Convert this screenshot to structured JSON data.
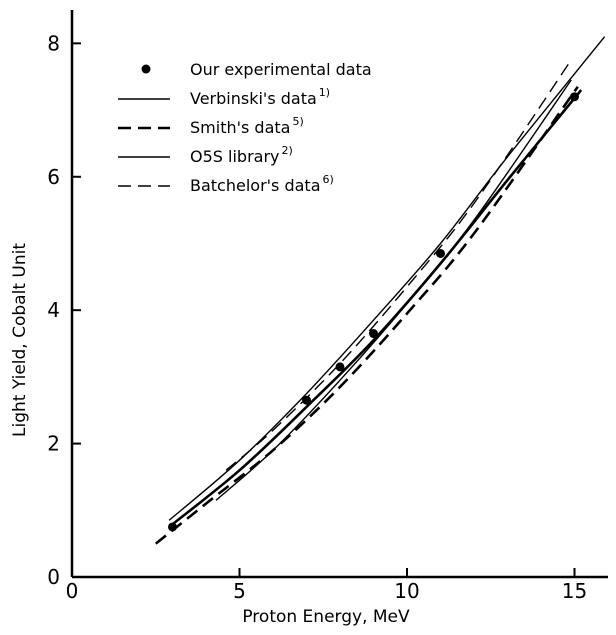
{
  "chart_data": {
    "type": "line",
    "title": "",
    "xlabel": "Proton Energy, MeV",
    "ylabel": "Light Yield, Cobalt Unit",
    "xlim": [
      0,
      16
    ],
    "ylim": [
      0,
      8.5
    ],
    "x_ticks": [
      "0",
      "5",
      "10",
      "15"
    ],
    "y_ticks": [
      "0",
      "2",
      "4",
      "6",
      "8"
    ],
    "grid": false,
    "legend_position": "top-left",
    "series": [
      {
        "name": "Our experimental data",
        "marker": "dot",
        "style": "solid",
        "width": "thick",
        "x": [
          3.0,
          7.0,
          8.0,
          9.0,
          11.0,
          15.0
        ],
        "y": [
          0.75,
          2.65,
          3.15,
          3.65,
          4.85,
          7.2
        ],
        "curve": [
          [
            2.9,
            0.75
          ],
          [
            5,
            1.6
          ],
          [
            7,
            2.55
          ],
          [
            9,
            3.55
          ],
          [
            11,
            4.7
          ],
          [
            13,
            5.95
          ],
          [
            15.2,
            7.3
          ]
        ]
      },
      {
        "name": "Verbinski's data",
        "sup": "1)",
        "style": "solid",
        "width": "thin",
        "curve": [
          [
            2.9,
            0.85
          ],
          [
            5,
            1.75
          ],
          [
            7,
            2.75
          ],
          [
            9,
            3.85
          ],
          [
            11,
            5.0
          ],
          [
            13,
            6.3
          ],
          [
            15.9,
            8.1
          ]
        ]
      },
      {
        "name": "Smith's data",
        "sup": "5)",
        "style": "dashed",
        "width": "thick",
        "curve": [
          [
            2.5,
            0.5
          ],
          [
            4,
            1.1
          ],
          [
            6,
            1.9
          ],
          [
            8,
            2.85
          ],
          [
            10,
            3.95
          ],
          [
            12,
            5.15
          ],
          [
            15.1,
            7.35
          ]
        ]
      },
      {
        "name": "O5S library",
        "sup": "2)",
        "style": "solid",
        "width": "thin",
        "curve": [
          [
            4.3,
            1.15
          ],
          [
            6,
            1.9
          ],
          [
            8,
            2.95
          ],
          [
            10,
            4.1
          ],
          [
            12,
            5.35
          ],
          [
            14.9,
            7.45
          ]
        ]
      },
      {
        "name": "Batchelor's data",
        "sup": "6)",
        "style": "dashed",
        "width": "thin",
        "curve": [
          [
            4.6,
            1.6
          ],
          [
            6,
            2.2
          ],
          [
            8,
            3.2
          ],
          [
            10,
            4.35
          ],
          [
            12,
            5.6
          ],
          [
            14.9,
            7.75
          ]
        ]
      }
    ]
  }
}
